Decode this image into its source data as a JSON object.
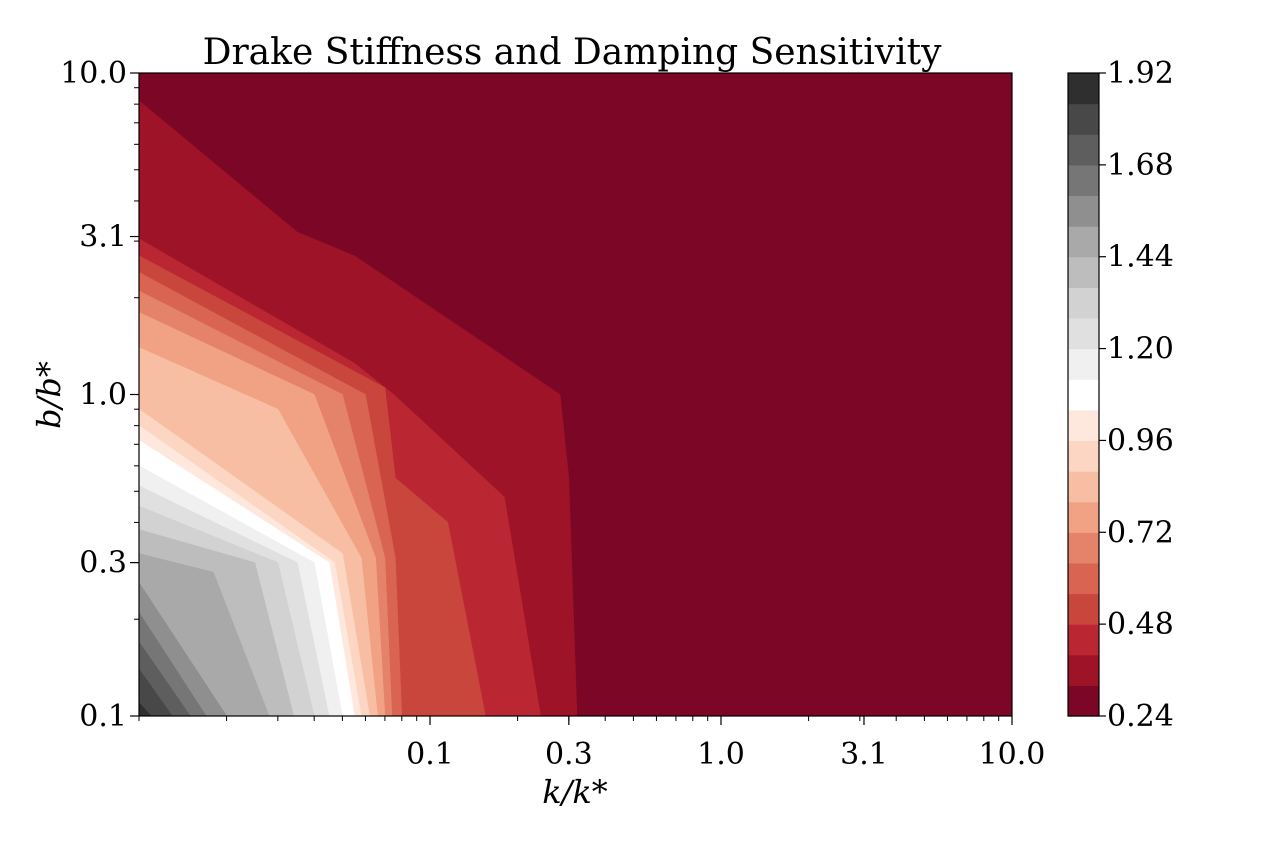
{
  "chart_data": {
    "type": "contourf",
    "title": "Drake Stiffness and Damping Sensitivity",
    "xlabel": "k/k*",
    "ylabel": "b/b*",
    "x_scale": "log",
    "y_scale": "log",
    "xlim": [
      0.01,
      10.0
    ],
    "ylim": [
      0.1,
      10.0
    ],
    "xticks": [
      0.1,
      0.3,
      1.0,
      3.1,
      10.0
    ],
    "xtick_labels": [
      "0.1",
      "0.3",
      "1.0",
      "3.1",
      "10.0"
    ],
    "yticks": [
      0.1,
      0.3,
      1.0,
      3.1,
      10.0
    ],
    "ytick_labels": [
      "0.1",
      "0.3",
      "1.0",
      "3.1",
      "10.0"
    ],
    "colorbar": {
      "min": 0.24,
      "max": 1.92,
      "levels": 22,
      "ticks": [
        0.24,
        0.48,
        0.72,
        0.96,
        1.2,
        1.44,
        1.68,
        1.92
      ],
      "tick_labels": [
        "0.24",
        "0.48",
        "0.72",
        "0.96",
        "1.20",
        "1.44",
        "1.68",
        "1.92"
      ],
      "colors": [
        "#7b0625",
        "#9e1327",
        "#ba2632",
        "#c9463d",
        "#d86451",
        "#e5836a",
        "#f1a284",
        "#f8bea3",
        "#fcd6c3",
        "#fee8dd",
        "#ffffff",
        "#f0f0f0",
        "#e0e0e0",
        "#d2d2d2",
        "#bdbdbd",
        "#a9a9a9",
        "#8f8f8f",
        "#767676",
        "#5e5e5e",
        "#484848",
        "#2f2f2f"
      ]
    },
    "regions": [
      {
        "level": 0.24,
        "color": "#7b0625",
        "boundary": [
          [
            0.01,
            10.0
          ],
          [
            10.0,
            10.0
          ],
          [
            10.0,
            0.1
          ],
          [
            0.01,
            0.1
          ]
        ]
      },
      {
        "level": 0.32,
        "color": "#9e1327",
        "boundary": [
          [
            0.01,
            8.2
          ],
          [
            0.035,
            3.2
          ],
          [
            0.055,
            2.7
          ],
          [
            0.28,
            1.0
          ],
          [
            0.3,
            0.55
          ],
          [
            0.32,
            0.1
          ],
          [
            0.01,
            0.1
          ]
        ]
      },
      {
        "level": 0.4,
        "color": "#ba2632",
        "boundary": [
          [
            0.01,
            3.05
          ],
          [
            0.055,
            1.25
          ],
          [
            0.075,
            1.0
          ],
          [
            0.18,
            0.48
          ],
          [
            0.24,
            0.1
          ],
          [
            0.01,
            0.1
          ]
        ]
      },
      {
        "level": 0.48,
        "color": "#c9463d",
        "boundary": [
          [
            0.01,
            2.7
          ],
          [
            0.07,
            1.05
          ],
          [
            0.076,
            0.55
          ],
          [
            0.115,
            0.4
          ],
          [
            0.155,
            0.1
          ],
          [
            0.01,
            0.1
          ]
        ]
      },
      {
        "level": 0.56,
        "color": "#d86451",
        "boundary": [
          [
            0.01,
            2.4
          ],
          [
            0.06,
            1.0
          ],
          [
            0.076,
            0.31
          ],
          [
            0.08,
            0.1
          ],
          [
            0.01,
            0.1
          ]
        ]
      },
      {
        "level": 0.64,
        "color": "#e5836a",
        "boundary": [
          [
            0.01,
            2.1
          ],
          [
            0.05,
            1.0
          ],
          [
            0.07,
            0.31
          ],
          [
            0.074,
            0.1
          ],
          [
            0.01,
            0.1
          ]
        ]
      },
      {
        "level": 0.72,
        "color": "#f1a284",
        "boundary": [
          [
            0.01,
            1.8
          ],
          [
            0.04,
            1.0
          ],
          [
            0.065,
            0.31
          ],
          [
            0.07,
            0.1
          ],
          [
            0.01,
            0.1
          ]
        ]
      },
      {
        "level": 0.8,
        "color": "#f8bea3",
        "boundary": [
          [
            0.01,
            1.4
          ],
          [
            0.03,
            0.9
          ],
          [
            0.058,
            0.31
          ],
          [
            0.066,
            0.1
          ],
          [
            0.01,
            0.1
          ]
        ]
      },
      {
        "level": 0.88,
        "color": "#fcd6c3",
        "boundary": [
          [
            0.01,
            0.9
          ],
          [
            0.05,
            0.32
          ],
          [
            0.062,
            0.1
          ],
          [
            0.01,
            0.1
          ]
        ]
      },
      {
        "level": 0.96,
        "color": "#fee8dd",
        "boundary": [
          [
            0.01,
            0.8
          ],
          [
            0.047,
            0.3
          ],
          [
            0.058,
            0.1
          ],
          [
            0.01,
            0.1
          ]
        ]
      },
      {
        "level": 1.04,
        "color": "#ffffff",
        "boundary": [
          [
            0.01,
            0.72
          ],
          [
            0.045,
            0.3
          ],
          [
            0.055,
            0.1
          ],
          [
            0.01,
            0.1
          ]
        ]
      },
      {
        "level": 1.12,
        "color": "#f0f0f0",
        "boundary": [
          [
            0.01,
            0.6
          ],
          [
            0.04,
            0.3
          ],
          [
            0.05,
            0.1
          ],
          [
            0.01,
            0.1
          ]
        ]
      },
      {
        "level": 1.2,
        "color": "#e0e0e0",
        "boundary": [
          [
            0.01,
            0.52
          ],
          [
            0.035,
            0.3
          ],
          [
            0.045,
            0.1
          ],
          [
            0.01,
            0.1
          ]
        ]
      },
      {
        "level": 1.28,
        "color": "#d2d2d2",
        "boundary": [
          [
            0.01,
            0.45
          ],
          [
            0.03,
            0.3
          ],
          [
            0.04,
            0.1
          ],
          [
            0.01,
            0.1
          ]
        ]
      },
      {
        "level": 1.36,
        "color": "#bdbdbd",
        "boundary": [
          [
            0.01,
            0.38
          ],
          [
            0.025,
            0.3
          ],
          [
            0.034,
            0.1
          ],
          [
            0.01,
            0.1
          ]
        ]
      },
      {
        "level": 1.44,
        "color": "#a9a9a9",
        "boundary": [
          [
            0.01,
            0.32
          ],
          [
            0.018,
            0.28
          ],
          [
            0.028,
            0.1
          ],
          [
            0.01,
            0.1
          ]
        ]
      },
      {
        "level": 1.52,
        "color": "#8f8f8f",
        "boundary": [
          [
            0.01,
            0.26
          ],
          [
            0.02,
            0.1
          ],
          [
            0.01,
            0.1
          ]
        ]
      },
      {
        "level": 1.6,
        "color": "#767676",
        "boundary": [
          [
            0.01,
            0.21
          ],
          [
            0.017,
            0.1
          ],
          [
            0.01,
            0.1
          ]
        ]
      },
      {
        "level": 1.68,
        "color": "#5e5e5e",
        "boundary": [
          [
            0.01,
            0.17
          ],
          [
            0.015,
            0.1
          ],
          [
            0.01,
            0.1
          ]
        ]
      },
      {
        "level": 1.76,
        "color": "#484848",
        "boundary": [
          [
            0.01,
            0.14
          ],
          [
            0.013,
            0.1
          ],
          [
            0.01,
            0.1
          ]
        ]
      },
      {
        "level": 1.84,
        "color": "#2f2f2f",
        "boundary": [
          [
            0.01,
            0.11
          ],
          [
            0.011,
            0.1
          ],
          [
            0.01,
            0.1
          ]
        ]
      }
    ]
  }
}
